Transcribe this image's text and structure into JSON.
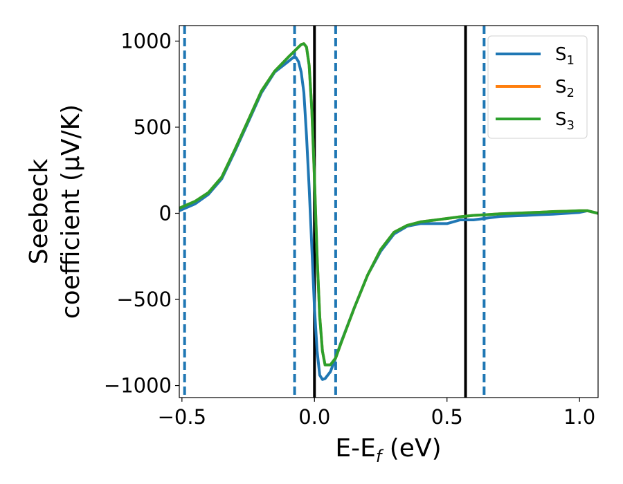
{
  "chart_data": {
    "type": "line",
    "title": "",
    "xlabel": "E-E",
    "xlabel_sub": "f",
    "xlabel_unit": " (eV)",
    "ylabel_line1": "Seebeck",
    "ylabel_line2": "coefficient  (μV/K)",
    "xlim": [
      -0.51,
      1.07
    ],
    "ylim": [
      -1070,
      1090
    ],
    "xticks": [
      -0.5,
      0.0,
      0.5,
      1.0
    ],
    "xtick_labels": [
      "−0.5",
      "0.0",
      "0.5",
      "1.0"
    ],
    "yticks": [
      -1000,
      -500,
      0,
      500,
      1000
    ],
    "ytick_labels": [
      "−1000",
      "−500",
      "0",
      "500",
      "1000"
    ],
    "grid": false,
    "legend_position": "top-right",
    "vlines_solid": [
      0.0,
      0.57
    ],
    "vlines_dashed": [
      -0.49,
      -0.075,
      0.08,
      0.64
    ],
    "series": [
      {
        "name": "S",
        "sub": "1",
        "color": "#1f77b4",
        "x": [
          -0.51,
          -0.45,
          -0.4,
          -0.35,
          -0.3,
          -0.25,
          -0.2,
          -0.15,
          -0.1,
          -0.08,
          -0.07,
          -0.06,
          -0.05,
          -0.04,
          -0.03,
          -0.02,
          -0.01,
          0.0,
          0.01,
          0.02,
          0.03,
          0.04,
          0.06,
          0.08,
          0.1,
          0.15,
          0.2,
          0.25,
          0.3,
          0.35,
          0.4,
          0.45,
          0.5,
          0.55,
          0.6,
          0.65,
          0.7,
          0.75,
          0.8,
          0.85,
          0.9,
          0.95,
          1.0,
          1.03,
          1.07
        ],
        "y": [
          15,
          55,
          110,
          200,
          360,
          530,
          700,
          820,
          880,
          905,
          905,
          880,
          820,
          700,
          450,
          150,
          -200,
          -550,
          -800,
          -940,
          -965,
          -960,
          -920,
          -840,
          -750,
          -550,
          -360,
          -220,
          -120,
          -75,
          -60,
          -60,
          -60,
          -38,
          -38,
          -28,
          -18,
          -15,
          -12,
          -8,
          -5,
          0,
          5,
          15,
          0
        ]
      },
      {
        "name": "S",
        "sub": "2",
        "color": "#ff7f0e",
        "x": [
          -0.51,
          -0.45,
          -0.4,
          -0.35,
          -0.3,
          -0.25,
          -0.2,
          -0.15,
          -0.1,
          -0.08,
          -0.06,
          -0.05,
          -0.04,
          -0.03,
          -0.02,
          -0.01,
          0.0,
          0.01,
          0.02,
          0.03,
          0.04,
          0.06,
          0.08,
          0.1,
          0.15,
          0.2,
          0.25,
          0.3,
          0.35,
          0.4,
          0.45,
          0.5,
          0.55,
          0.6,
          0.65,
          0.7,
          0.75,
          0.8,
          0.85,
          0.9,
          0.95,
          1.0,
          1.03,
          1.07
        ],
        "y": [
          30,
          70,
          120,
          210,
          370,
          540,
          710,
          825,
          905,
          935,
          965,
          980,
          985,
          965,
          860,
          600,
          200,
          -250,
          -600,
          -800,
          -880,
          -880,
          -840,
          -755,
          -550,
          -360,
          -210,
          -110,
          -70,
          -50,
          -40,
          -30,
          -20,
          -12,
          -8,
          -3,
          0,
          3,
          6,
          10,
          12,
          15,
          15,
          0
        ]
      },
      {
        "name": "S",
        "sub": "3",
        "color": "#2ca02c",
        "x": [
          -0.51,
          -0.45,
          -0.4,
          -0.35,
          -0.3,
          -0.25,
          -0.2,
          -0.15,
          -0.1,
          -0.08,
          -0.06,
          -0.05,
          -0.04,
          -0.03,
          -0.02,
          -0.01,
          0.0,
          0.01,
          0.02,
          0.03,
          0.04,
          0.06,
          0.08,
          0.1,
          0.15,
          0.2,
          0.25,
          0.3,
          0.35,
          0.4,
          0.45,
          0.5,
          0.55,
          0.6,
          0.65,
          0.7,
          0.75,
          0.8,
          0.85,
          0.9,
          0.95,
          1.0,
          1.03,
          1.07
        ],
        "y": [
          30,
          70,
          120,
          210,
          370,
          540,
          710,
          825,
          905,
          935,
          965,
          980,
          985,
          965,
          860,
          600,
          200,
          -250,
          -600,
          -800,
          -880,
          -880,
          -840,
          -755,
          -550,
          -360,
          -210,
          -110,
          -70,
          -50,
          -40,
          -30,
          -20,
          -12,
          -8,
          -3,
          0,
          3,
          6,
          10,
          12,
          15,
          15,
          0
        ]
      }
    ]
  }
}
